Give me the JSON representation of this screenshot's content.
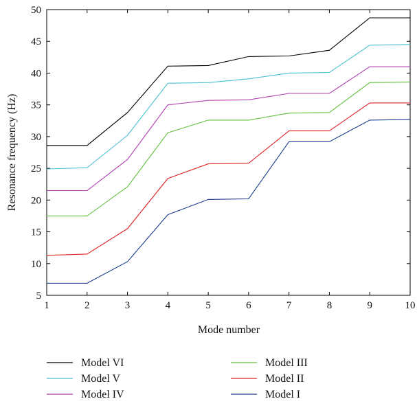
{
  "chart_data": {
    "type": "line",
    "title": "",
    "xlabel": "Mode number",
    "ylabel": "Resonance frequency (Hz)",
    "xlim": [
      1,
      10
    ],
    "ylim": [
      5,
      50
    ],
    "x_ticks": [
      1,
      2,
      3,
      4,
      5,
      6,
      7,
      8,
      9,
      10
    ],
    "y_ticks": [
      5,
      10,
      15,
      20,
      25,
      30,
      35,
      40,
      45,
      50
    ],
    "grid": false,
    "legend_position": "bottom",
    "x": [
      1,
      2,
      3,
      4,
      5,
      6,
      7,
      8,
      9,
      10
    ],
    "series": [
      {
        "name": "Model VI",
        "color": "#000000",
        "values": [
          28.6,
          28.6,
          33.8,
          41.1,
          41.2,
          42.6,
          42.7,
          43.6,
          48.7,
          48.7
        ]
      },
      {
        "name": "Model V",
        "color": "#4bbfd0",
        "values": [
          24.9,
          25.1,
          30.2,
          38.4,
          38.5,
          39.1,
          40.0,
          40.1,
          44.4,
          44.5
        ]
      },
      {
        "name": "Model IV",
        "color": "#b03cb0",
        "values": [
          21.5,
          21.5,
          26.4,
          35.0,
          35.7,
          35.8,
          36.8,
          36.8,
          41.0,
          41.0
        ]
      },
      {
        "name": "Model III",
        "color": "#5fbf3a",
        "values": [
          17.5,
          17.5,
          22.1,
          30.6,
          32.6,
          32.6,
          33.7,
          33.8,
          38.5,
          38.6
        ]
      },
      {
        "name": "Model II",
        "color": "#e02020",
        "values": [
          11.3,
          11.5,
          15.5,
          23.4,
          25.7,
          25.8,
          30.9,
          30.9,
          35.3,
          35.3
        ]
      },
      {
        "name": "Model I",
        "color": "#1a3a8c",
        "values": [
          6.9,
          6.9,
          10.3,
          17.7,
          20.1,
          20.2,
          29.2,
          29.2,
          32.6,
          32.7
        ]
      }
    ]
  }
}
